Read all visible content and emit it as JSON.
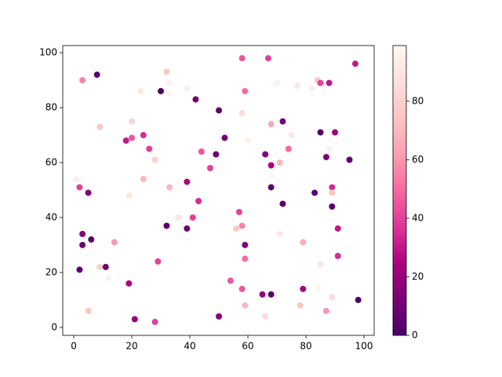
{
  "chart_data": {
    "type": "scatter",
    "x": [
      3,
      8,
      23,
      32,
      33,
      30,
      33,
      39,
      42,
      58,
      67,
      59,
      70,
      77,
      82,
      84,
      85,
      88,
      97,
      9,
      20,
      24,
      20,
      18,
      26,
      28,
      50,
      58,
      60,
      52,
      49,
      44,
      47,
      68,
      72,
      75,
      74,
      66,
      71,
      68,
      85,
      90,
      88,
      87,
      95,
      1,
      2,
      5,
      19,
      24,
      33,
      39,
      43,
      36,
      41,
      32,
      39,
      57,
      56,
      58,
      59,
      59,
      68,
      72,
      71,
      79,
      83,
      89,
      89,
      89,
      91,
      85,
      91,
      3,
      3,
      6,
      2,
      9,
      11,
      12,
      14,
      19,
      29,
      5,
      21,
      28,
      50,
      54,
      58,
      59,
      65,
      68,
      66,
      78,
      79,
      84,
      87,
      89,
      98
    ],
    "y": [
      90,
      92,
      86,
      93,
      89,
      86,
      85,
      87,
      83,
      98,
      98,
      86,
      89,
      88,
      87,
      90,
      89,
      89,
      96,
      73,
      75,
      70,
      69,
      68,
      65,
      61,
      79,
      78,
      68,
      69,
      63,
      64,
      58,
      74,
      75,
      70,
      65,
      63,
      60,
      59,
      71,
      71,
      65,
      62,
      61,
      54,
      51,
      49,
      48,
      54,
      51,
      53,
      46,
      40,
      40,
      37,
      36,
      42,
      36,
      37,
      30,
      25,
      51,
      45,
      34,
      31,
      49,
      51,
      49,
      44,
      36,
      23,
      26,
      34,
      30,
      32,
      21,
      22,
      22,
      18,
      31,
      16,
      24,
      6,
      3,
      2,
      4,
      17,
      14,
      8,
      12,
      12,
      4,
      8,
      14,
      14,
      6,
      11,
      10
    ],
    "c": [
      55,
      5,
      90,
      75,
      95,
      3,
      97,
      95,
      10,
      45,
      40,
      50,
      95,
      90,
      93,
      75,
      40,
      30,
      30,
      75,
      80,
      35,
      45,
      30,
      40,
      80,
      5,
      85,
      95,
      10,
      10,
      45,
      40,
      65,
      10,
      90,
      50,
      15,
      70,
      25,
      2,
      20,
      95,
      15,
      5,
      95,
      40,
      15,
      90,
      70,
      70,
      25,
      35,
      90,
      40,
      5,
      8,
      40,
      75,
      55,
      15,
      50,
      5,
      5,
      90,
      65,
      5,
      35,
      75,
      5,
      30,
      90,
      35,
      15,
      8,
      5,
      5,
      80,
      10,
      95,
      60,
      25,
      40,
      75,
      20,
      40,
      15,
      45,
      45,
      70,
      20,
      5,
      85,
      75,
      25,
      98,
      60,
      85,
      2
    ],
    "xlim": [
      -3.8,
      103.5
    ],
    "ylim": [
      -2.9,
      102.6
    ],
    "xticks": [
      0,
      20,
      40,
      60,
      80,
      100
    ],
    "yticks": [
      0,
      20,
      40,
      60,
      80,
      100
    ],
    "clim": [
      0,
      99
    ],
    "cticks": [
      0,
      20,
      40,
      60,
      80
    ],
    "colormap": [
      "#49006a",
      "#7a0177",
      "#ae017e",
      "#dd3497",
      "#f768a1",
      "#fa9fb5",
      "#fcc5c0",
      "#fde0dd",
      "#fff7f3"
    ]
  }
}
